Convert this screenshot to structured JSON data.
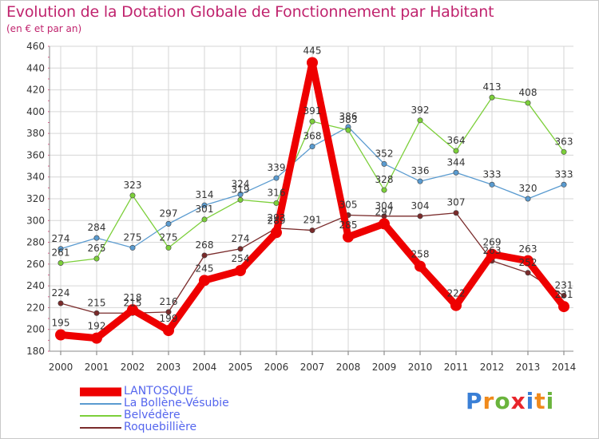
{
  "title": "Evolution de la Dotation Globale de Fonctionnement par Habitant",
  "subtitle": "(en € et par an)",
  "brand": {
    "letters": [
      "P",
      "r",
      "o",
      "x",
      "i",
      "t",
      "i"
    ],
    "colors": [
      "#3a7fd6",
      "#f08a1c",
      "#6ab43c",
      "#e8252b",
      "#3a7fd6",
      "#f08a1c",
      "#6ab43c"
    ]
  },
  "colors": {
    "title": "#c0246e",
    "axis_labels": "#333333",
    "legend_text": "#5566ee",
    "grid": "#d6d6d6"
  },
  "chart_data": {
    "type": "line",
    "title": "Evolution de la Dotation Globale de Fonctionnement par Habitant",
    "ylabel": "(en € et par an)",
    "xlabel": "",
    "ylim": [
      180,
      460
    ],
    "yticks": [
      180,
      200,
      220,
      240,
      260,
      280,
      300,
      320,
      340,
      360,
      380,
      400,
      420,
      440,
      460
    ],
    "categories": [
      "2000",
      "2001",
      "2002",
      "2003",
      "2004",
      "2005",
      "2006",
      "2007",
      "2008",
      "2009",
      "2010",
      "2011",
      "2012",
      "2013",
      "2014"
    ],
    "grid": true,
    "legend_position": "bottom-left",
    "series": [
      {
        "name": "LANTOSQUE",
        "color": "#ee0000",
        "thick": true,
        "values": [
          195,
          192,
          218,
          199,
          245,
          254,
          289,
          445,
          285,
          297,
          258,
          222,
          269,
          263,
          221
        ],
        "labels": [
          "195",
          "192",
          "218",
          "199",
          "245",
          "254",
          "289",
          "445",
          "285",
          "297",
          "258",
          "222",
          "269",
          "263",
          "221"
        ]
      },
      {
        "name": "La Bollène-Vésubie",
        "color": "#5a9bd0",
        "thick": false,
        "values": [
          274,
          284,
          275,
          297,
          314,
          324,
          339,
          368,
          386,
          352,
          336,
          344,
          333,
          320,
          333
        ],
        "labels": [
          "274",
          "284",
          "275",
          "297",
          "314",
          "324",
          "339",
          "368",
          "386",
          "352",
          "336",
          "344",
          "333",
          "320",
          "333"
        ]
      },
      {
        "name": "Belvédère",
        "color": "#7ccf3a",
        "thick": false,
        "values": [
          261,
          265,
          323,
          275,
          301,
          319,
          316,
          391,
          383,
          328,
          392,
          364,
          413,
          408,
          363
        ],
        "labels": [
          "261",
          "265",
          "323",
          "275",
          "301",
          "319",
          "316",
          "391",
          "383",
          "328",
          "392",
          "364",
          "413",
          "408",
          "363"
        ]
      },
      {
        "name": "Roquebillière",
        "color": "#7a2b2b",
        "thick": false,
        "values": [
          224,
          215,
          215,
          216,
          268,
          274,
          293,
          291,
          305,
          304,
          304,
          307,
          263,
          252,
          231
        ],
        "labels": [
          "224",
          "215",
          "215",
          "216",
          "268",
          "274",
          "293",
          "291",
          "305",
          "304",
          "304",
          "307",
          "263",
          "252",
          "231"
        ]
      }
    ]
  }
}
